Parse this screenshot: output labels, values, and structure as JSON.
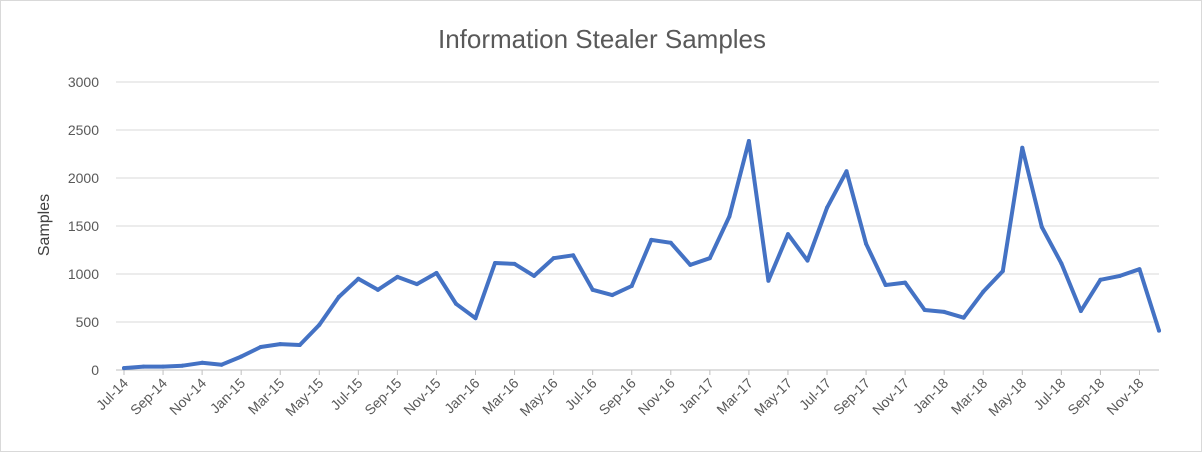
{
  "chart_data": {
    "type": "line",
    "title": "Information Stealer Samples",
    "xlabel": "",
    "ylabel": "Samples",
    "ylim": [
      0,
      3000
    ],
    "yticks": [
      "0",
      "500",
      "1000",
      "1500",
      "2000",
      "2500",
      "3000"
    ],
    "ytick_values": [
      0,
      500,
      1000,
      1500,
      2000,
      2500,
      3000
    ],
    "grid": true,
    "legend": "none",
    "line_color": "#4472c4",
    "x": [
      "Jul-14",
      "Aug-14",
      "Sep-14",
      "Oct-14",
      "Nov-14",
      "Dec-14",
      "Jan-15",
      "Feb-15",
      "Mar-15",
      "Apr-15",
      "May-15",
      "Jun-15",
      "Jul-15",
      "Aug-15",
      "Sep-15",
      "Oct-15",
      "Nov-15",
      "Dec-15",
      "Jan-16",
      "Feb-16",
      "Mar-16",
      "Apr-16",
      "May-16",
      "Jun-16",
      "Jul-16",
      "Aug-16",
      "Sep-16",
      "Oct-16",
      "Nov-16",
      "Dec-16",
      "Jan-17",
      "Feb-17",
      "Mar-17",
      "Apr-17",
      "May-17",
      "Jun-17",
      "Jul-17",
      "Aug-17",
      "Sep-17",
      "Oct-17",
      "Nov-17",
      "Dec-17",
      "Jan-18",
      "Feb-18",
      "Mar-18",
      "Apr-18",
      "May-18",
      "Jun-18",
      "Jul-18",
      "Aug-18",
      "Sep-18",
      "Oct-18",
      "Nov-18",
      "Dec-18"
    ],
    "x_tick_labels": [
      "Jul-14",
      "Sep-14",
      "Nov-14",
      "Jan-15",
      "Mar-15",
      "May-15",
      "Jul-15",
      "Sep-15",
      "Nov-15",
      "Jan-16",
      "Mar-16",
      "May-16",
      "Jul-16",
      "Sep-16",
      "Nov-16",
      "Jan-17",
      "Mar-17",
      "May-17",
      "Jul-17",
      "Sep-17",
      "Nov-17",
      "Jan-18",
      "Mar-18",
      "May-18",
      "Jul-18",
      "Sep-18",
      "Nov-18"
    ],
    "series": [
      {
        "name": "",
        "values": [
          20,
          35,
          35,
          45,
          75,
          55,
          140,
          240,
          270,
          260,
          470,
          760,
          950,
          835,
          970,
          895,
          1010,
          690,
          540,
          1115,
          1105,
          980,
          1165,
          1195,
          835,
          780,
          875,
          1355,
          1325,
          1095,
          1165,
          1600,
          2385,
          930,
          1415,
          1140,
          1690,
          2070,
          1315,
          885,
          910,
          625,
          605,
          545,
          815,
          1030,
          2315,
          1490,
          1110,
          615,
          940,
          980,
          1050,
          410
        ]
      }
    ]
  }
}
